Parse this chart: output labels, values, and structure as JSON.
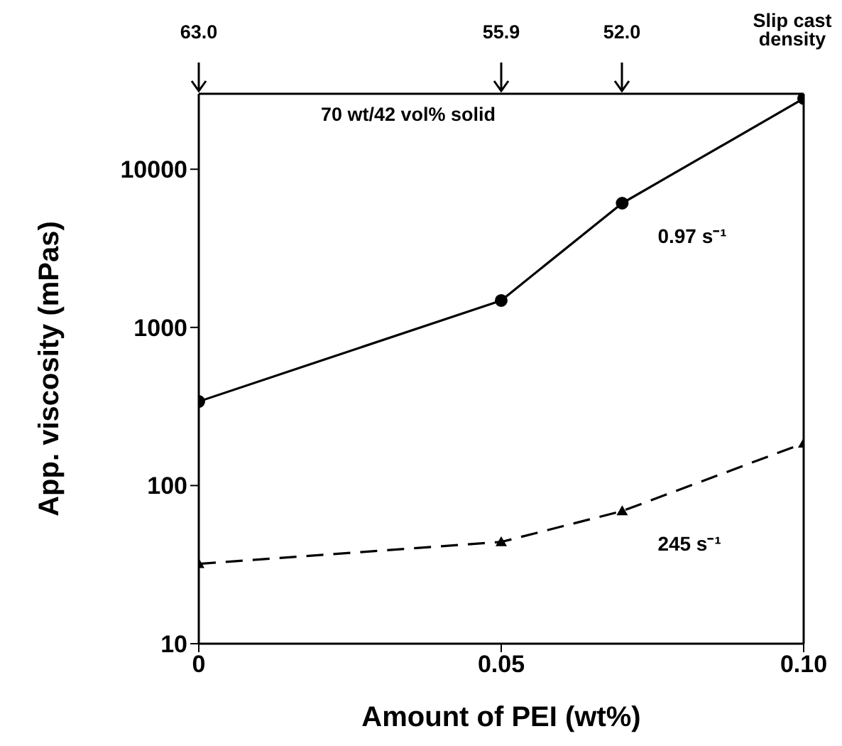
{
  "chart_data": {
    "type": "line",
    "xlabel": "Amount of PEI (wt%)",
    "ylabel": "App. viscosity (mPas)",
    "x": [
      0,
      0.05,
      0.07,
      0.1
    ],
    "series": [
      {
        "name": "0.97 s⁻¹",
        "color": "#000000",
        "values": [
          340,
          1480,
          6100,
          28000
        ],
        "marker": "circle",
        "line_style": "solid"
      },
      {
        "name": "245 s⁻¹",
        "color": "#000000",
        "values": [
          32,
          44,
          69,
          185
        ],
        "marker": "triangle",
        "line_style": "dashed"
      }
    ],
    "xlim": [
      0,
      0.1
    ],
    "xticks": [
      0,
      0.05,
      {
        "value": 0.1,
        "label": "0.10"
      }
    ],
    "ylim": [
      10,
      30000
    ],
    "yticks": [
      10,
      100,
      1000,
      10000
    ],
    "log": "y",
    "grid": false,
    "legend": false,
    "annotations": [
      "70 wt/42 vol% solid",
      "Slip cast density",
      "63.0",
      "55.9",
      "52.0"
    ]
  }
}
